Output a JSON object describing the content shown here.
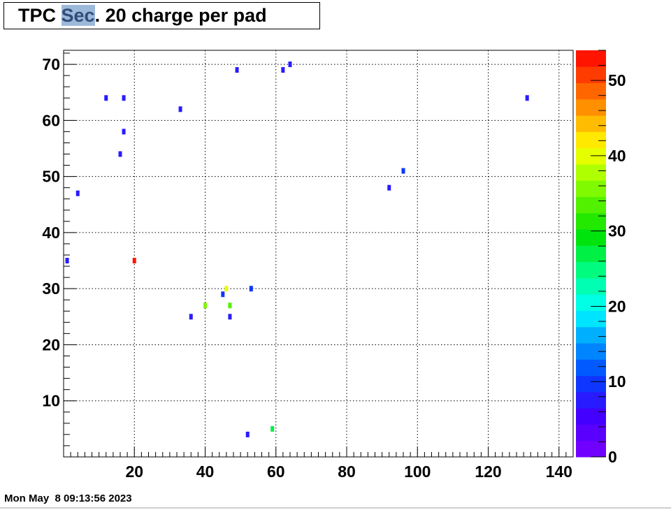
{
  "title": {
    "before": "TPC ",
    "highlight": "Sec",
    "after": ". 20 charge per pad"
  },
  "timestamp": "Mon May  8 09:13:56 2023",
  "chart_data": {
    "type": "heatmap",
    "title": "TPC Sec. 20 charge per pad",
    "xlabel": "",
    "ylabel": "",
    "xlim": [
      0,
      144
    ],
    "ylim": [
      0,
      72.5
    ],
    "xticks": [
      20,
      40,
      60,
      80,
      100,
      120,
      140
    ],
    "yticks": [
      10,
      20,
      30,
      40,
      50,
      60,
      70
    ],
    "grid": true,
    "colorbar": {
      "range": [
        0,
        54
      ],
      "ticks": [
        0,
        10,
        20,
        30,
        40,
        50
      ]
    },
    "points": [
      {
        "x": 64,
        "y": 70,
        "z": 8
      },
      {
        "x": 49,
        "y": 69,
        "z": 8
      },
      {
        "x": 62,
        "y": 69,
        "z": 8
      },
      {
        "x": 12,
        "y": 64,
        "z": 8
      },
      {
        "x": 17,
        "y": 64,
        "z": 8
      },
      {
        "x": 131,
        "y": 64,
        "z": 8
      },
      {
        "x": 33,
        "y": 62,
        "z": 8
      },
      {
        "x": 17,
        "y": 58,
        "z": 8
      },
      {
        "x": 16,
        "y": 54,
        "z": 8
      },
      {
        "x": 96,
        "y": 51,
        "z": 10
      },
      {
        "x": 92,
        "y": 48,
        "z": 8
      },
      {
        "x": 4,
        "y": 47,
        "z": 8
      },
      {
        "x": 1,
        "y": 35,
        "z": 8
      },
      {
        "x": 20,
        "y": 35,
        "z": 52
      },
      {
        "x": 46,
        "y": 30,
        "z": 39
      },
      {
        "x": 53,
        "y": 30,
        "z": 10
      },
      {
        "x": 45,
        "y": 29,
        "z": 10
      },
      {
        "x": 40,
        "y": 27,
        "z": 36
      },
      {
        "x": 47,
        "y": 27,
        "z": 34
      },
      {
        "x": 36,
        "y": 25,
        "z": 8
      },
      {
        "x": 47,
        "y": 25,
        "z": 8
      },
      {
        "x": 59,
        "y": 5,
        "z": 26
      },
      {
        "x": 52,
        "y": 4,
        "z": 8
      }
    ]
  }
}
